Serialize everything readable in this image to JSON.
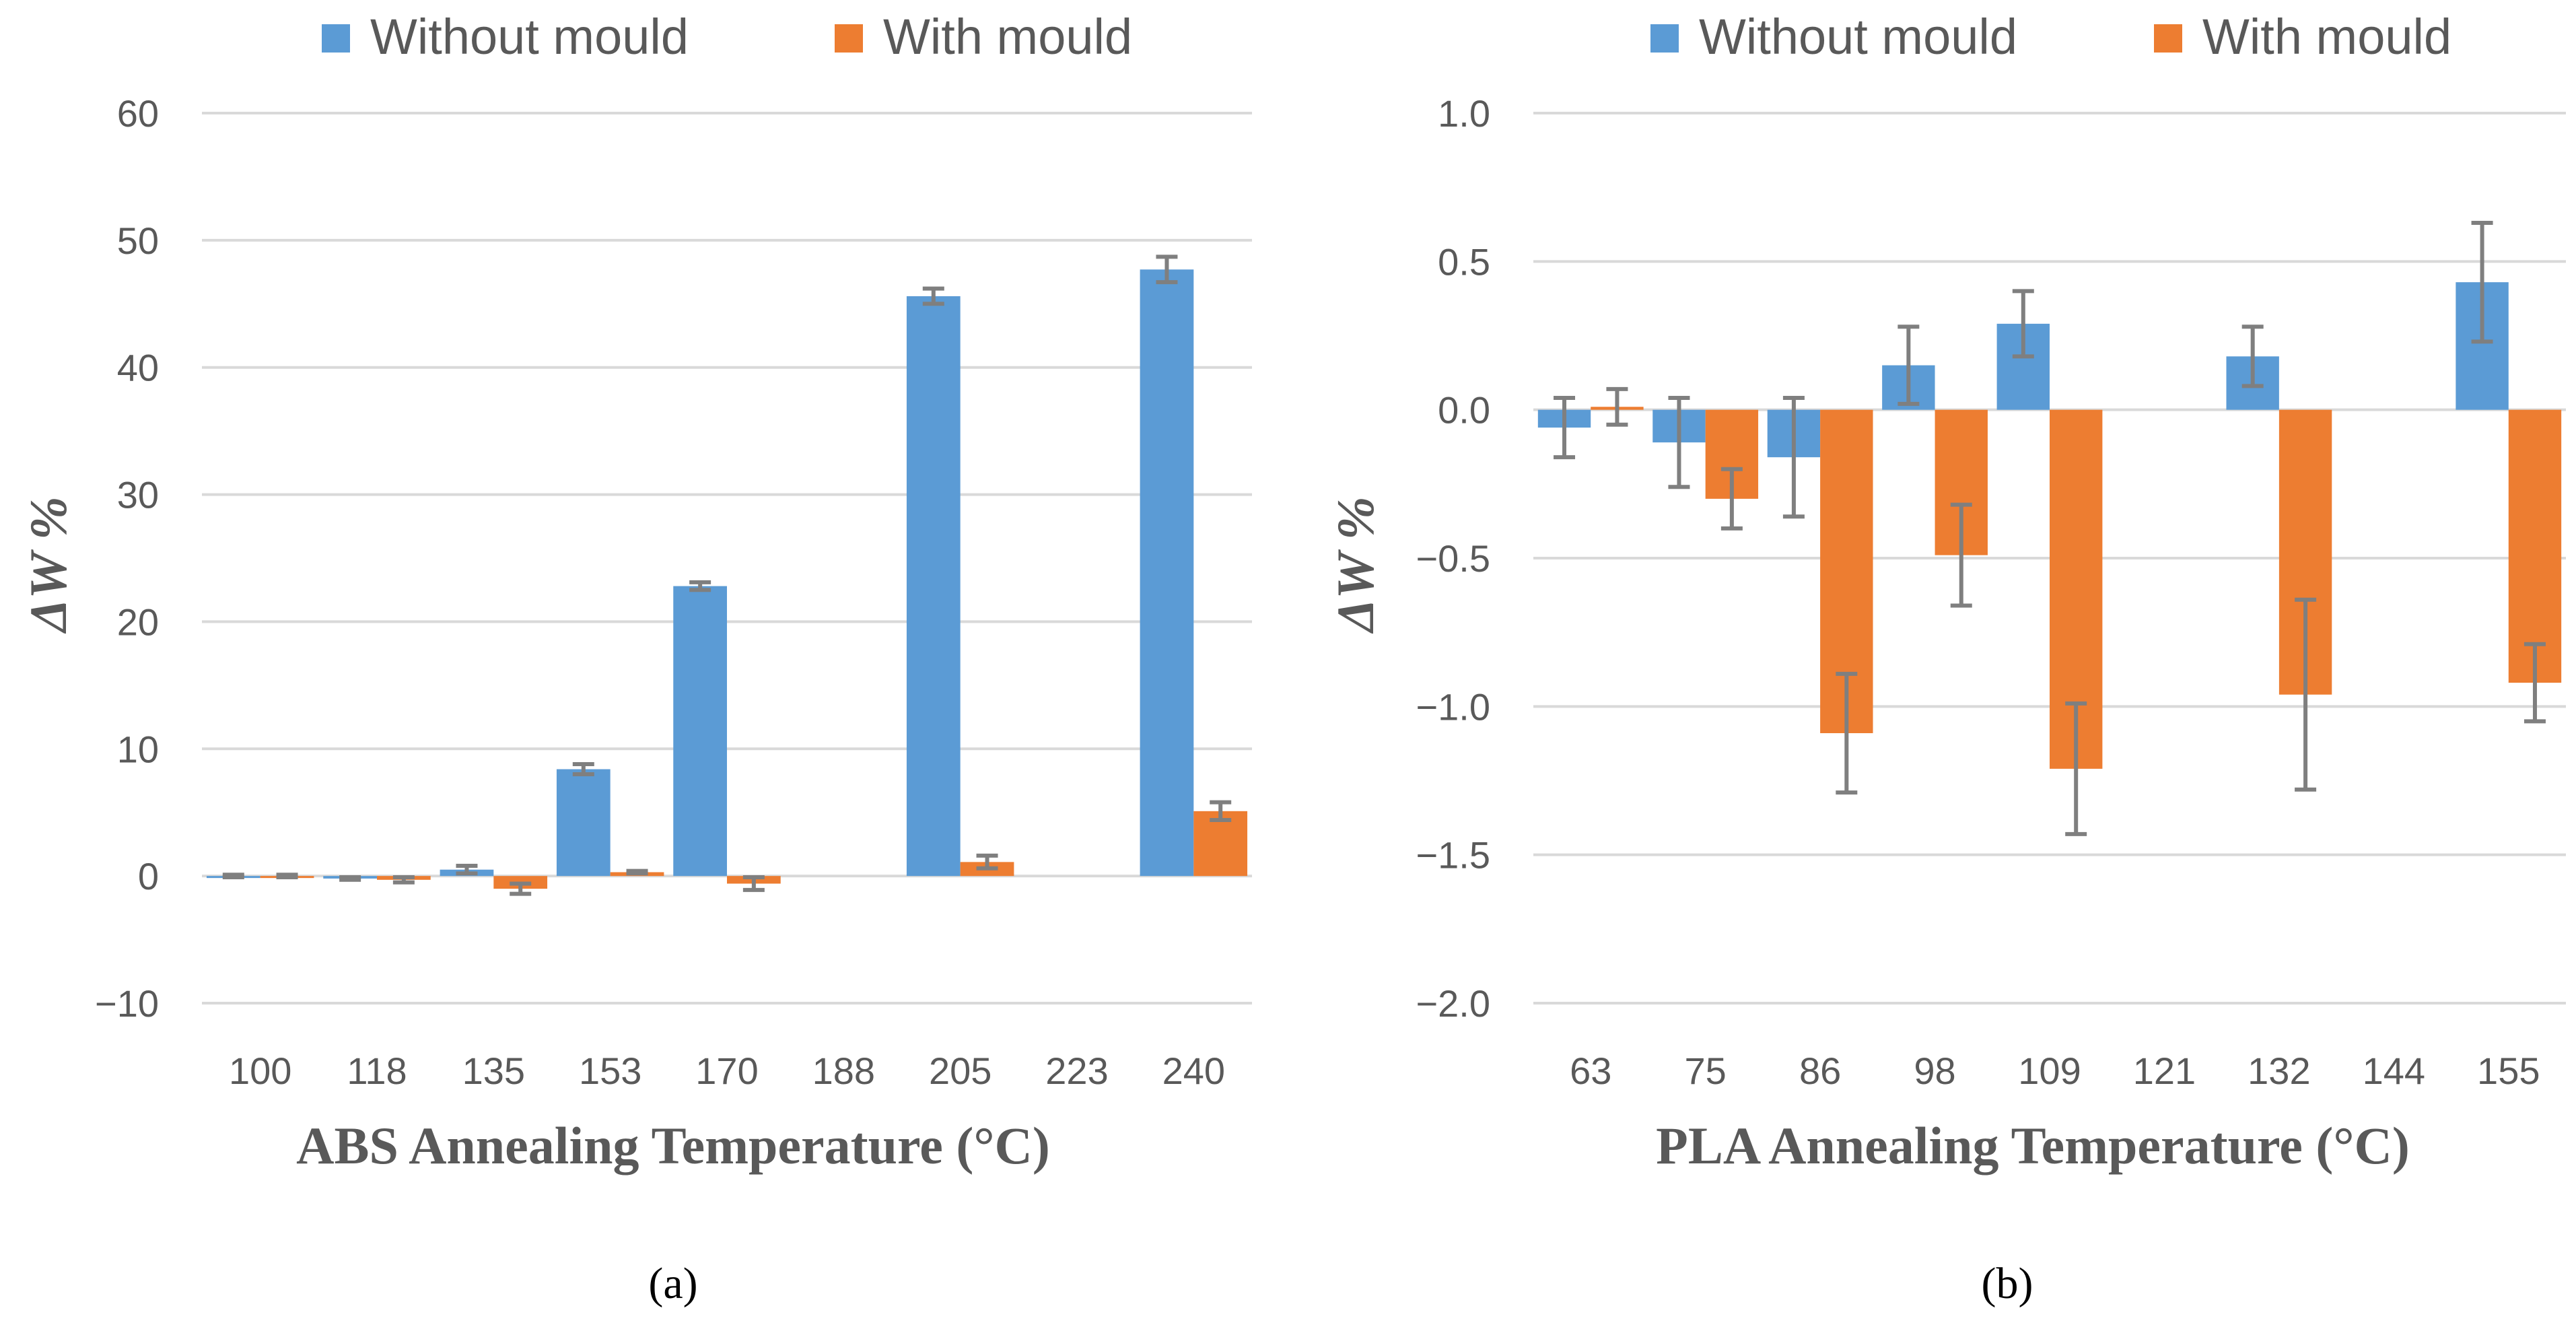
{
  "colors": {
    "without": "#5B9BD5",
    "with": "#ED7D31",
    "grid": "#D9D9D9",
    "errorbar": "#7F7F7F"
  },
  "chart_data": [
    {
      "type": "bar",
      "panel_label": "(a)",
      "title": "",
      "xlabel": "ABS  Annealing Temperature (°C)",
      "ylabel": "ΔW %",
      "ylim": [
        -10,
        60
      ],
      "yticks": [
        -10,
        0,
        10,
        20,
        30,
        40,
        50,
        60
      ],
      "ytick_labels": [
        "−10",
        "0",
        "10",
        "20",
        "30",
        "40",
        "50",
        "60"
      ],
      "categories": [
        "100",
        "118",
        "135",
        "153",
        "170",
        "188",
        "205",
        "223",
        "240"
      ],
      "legend": [
        "Without mould",
        "With mould"
      ],
      "legend_position": "top-center",
      "series": [
        {
          "name": "Without mould",
          "values": [
            0,
            -0.2,
            0.5,
            8.4,
            22.8,
            null,
            45.6,
            null,
            47.7
          ],
          "errors": [
            0.1,
            0.1,
            0.3,
            0.4,
            0.3,
            null,
            0.6,
            null,
            1.0
          ]
        },
        {
          "name": "With mould",
          "values": [
            0,
            -0.3,
            -1.0,
            0.3,
            -0.6,
            null,
            1.1,
            null,
            5.1
          ],
          "errors": [
            0.1,
            0.2,
            0.4,
            0.1,
            0.5,
            null,
            0.5,
            null,
            0.7
          ]
        }
      ]
    },
    {
      "type": "bar",
      "panel_label": "(b)",
      "title": "",
      "xlabel": "PLA Annealing Temperature (°C)",
      "ylabel": "ΔW %",
      "ylim": [
        -2.0,
        1.0
      ],
      "yticks": [
        -2.0,
        -1.5,
        -1.0,
        -0.5,
        0.0,
        0.5,
        1.0
      ],
      "ytick_labels": [
        "−2.0",
        "−1.5",
        "−1.0",
        "−0.5",
        "0.0",
        "0.5",
        "1.0"
      ],
      "categories": [
        "63",
        "75",
        "86",
        "98",
        "109",
        "121",
        "132",
        "144",
        "155"
      ],
      "legend": [
        "Without mould",
        "With mould"
      ],
      "legend_position": "top-center",
      "series": [
        {
          "name": "Without mould",
          "values": [
            -0.06,
            -0.11,
            -0.16,
            0.15,
            0.29,
            null,
            0.18,
            null,
            0.43
          ],
          "errors": [
            0.1,
            0.15,
            0.2,
            0.13,
            0.11,
            null,
            0.1,
            null,
            0.2
          ]
        },
        {
          "name": "With mould",
          "values": [
            0.01,
            -0.3,
            -1.09,
            -0.49,
            -1.21,
            null,
            -0.96,
            null,
            -0.92
          ],
          "errors": [
            0.06,
            0.1,
            0.2,
            0.17,
            0.22,
            null,
            0.32,
            null,
            0.13
          ]
        }
      ]
    }
  ]
}
